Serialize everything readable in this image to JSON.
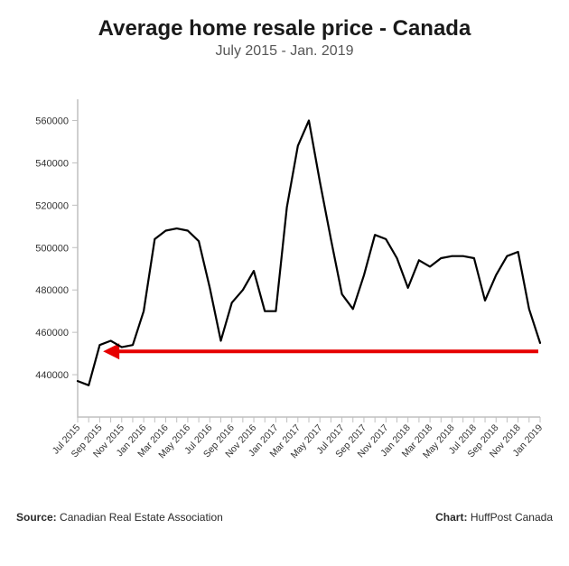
{
  "title": "Average home resale price - Canada",
  "title_fontsize": 24,
  "subtitle": "July 2015 - Jan. 2019",
  "subtitle_fontsize": 16,
  "chart": {
    "type": "line",
    "background_color": "#ffffff",
    "axis_color": "#bfbfbf",
    "series_color": "#000000",
    "series_width": 2.2,
    "arrow_color": "#e60000",
    "arrow_width": 4,
    "arrow_y_value": 451000,
    "ylim": [
      420000,
      570000
    ],
    "yticks": [
      440000,
      460000,
      480000,
      500000,
      520000,
      540000,
      560000
    ],
    "x_labels_every": 2,
    "x_labels": [
      "Jul 2015",
      "Sep 2015",
      "Nov 2015",
      "Jan 2016",
      "Mar 2016",
      "May 2016",
      "Jul 2016",
      "Sep 2016",
      "Nov 2016",
      "Jan 2017",
      "Mar 2017",
      "May 2017",
      "Jul 2017",
      "Sep 2017",
      "Nov 2017",
      "Jan 2018",
      "Mar 2018",
      "May 2018",
      "Jul 2018",
      "Sep 2018",
      "Nov 2018",
      "Jan 2019"
    ],
    "x_categories": [
      "Jul 2015",
      "Aug 2015",
      "Sep 2015",
      "Oct 2015",
      "Nov 2015",
      "Dec 2015",
      "Jan 2016",
      "Feb 2016",
      "Mar 2016",
      "Apr 2016",
      "May 2016",
      "Jun 2016",
      "Jul 2016",
      "Aug 2016",
      "Sep 2016",
      "Oct 2016",
      "Nov 2016",
      "Dec 2016",
      "Jan 2017",
      "Feb 2017",
      "Mar 2017",
      "Apr 2017",
      "May 2017",
      "Jun 2017",
      "Jul 2017",
      "Aug 2017",
      "Sep 2017",
      "Oct 2017",
      "Nov 2017",
      "Dec 2017",
      "Jan 2018",
      "Feb 2018",
      "Mar 2018",
      "Apr 2018",
      "May 2018",
      "Jun 2018",
      "Jul 2018",
      "Aug 2018",
      "Sep 2018",
      "Oct 2018",
      "Nov 2018",
      "Dec 2018",
      "Jan 2019"
    ],
    "values": [
      437000,
      435000,
      454000,
      456000,
      453000,
      454000,
      470000,
      504000,
      508000,
      509000,
      508000,
      503000,
      481000,
      456000,
      474000,
      480000,
      489000,
      470000,
      470000,
      519000,
      548000,
      560000,
      531000,
      504000,
      478000,
      471000,
      487000,
      506000,
      504000,
      495000,
      481000,
      494000,
      491000,
      495000,
      496000,
      496000,
      495000,
      475000,
      487000,
      496000,
      498000,
      471000,
      455000
    ]
  },
  "footer": {
    "source_label": "Source:",
    "source_value": "Canadian Real Estate Association",
    "chart_label": "Chart:",
    "chart_value": "HuffPost Canada"
  }
}
